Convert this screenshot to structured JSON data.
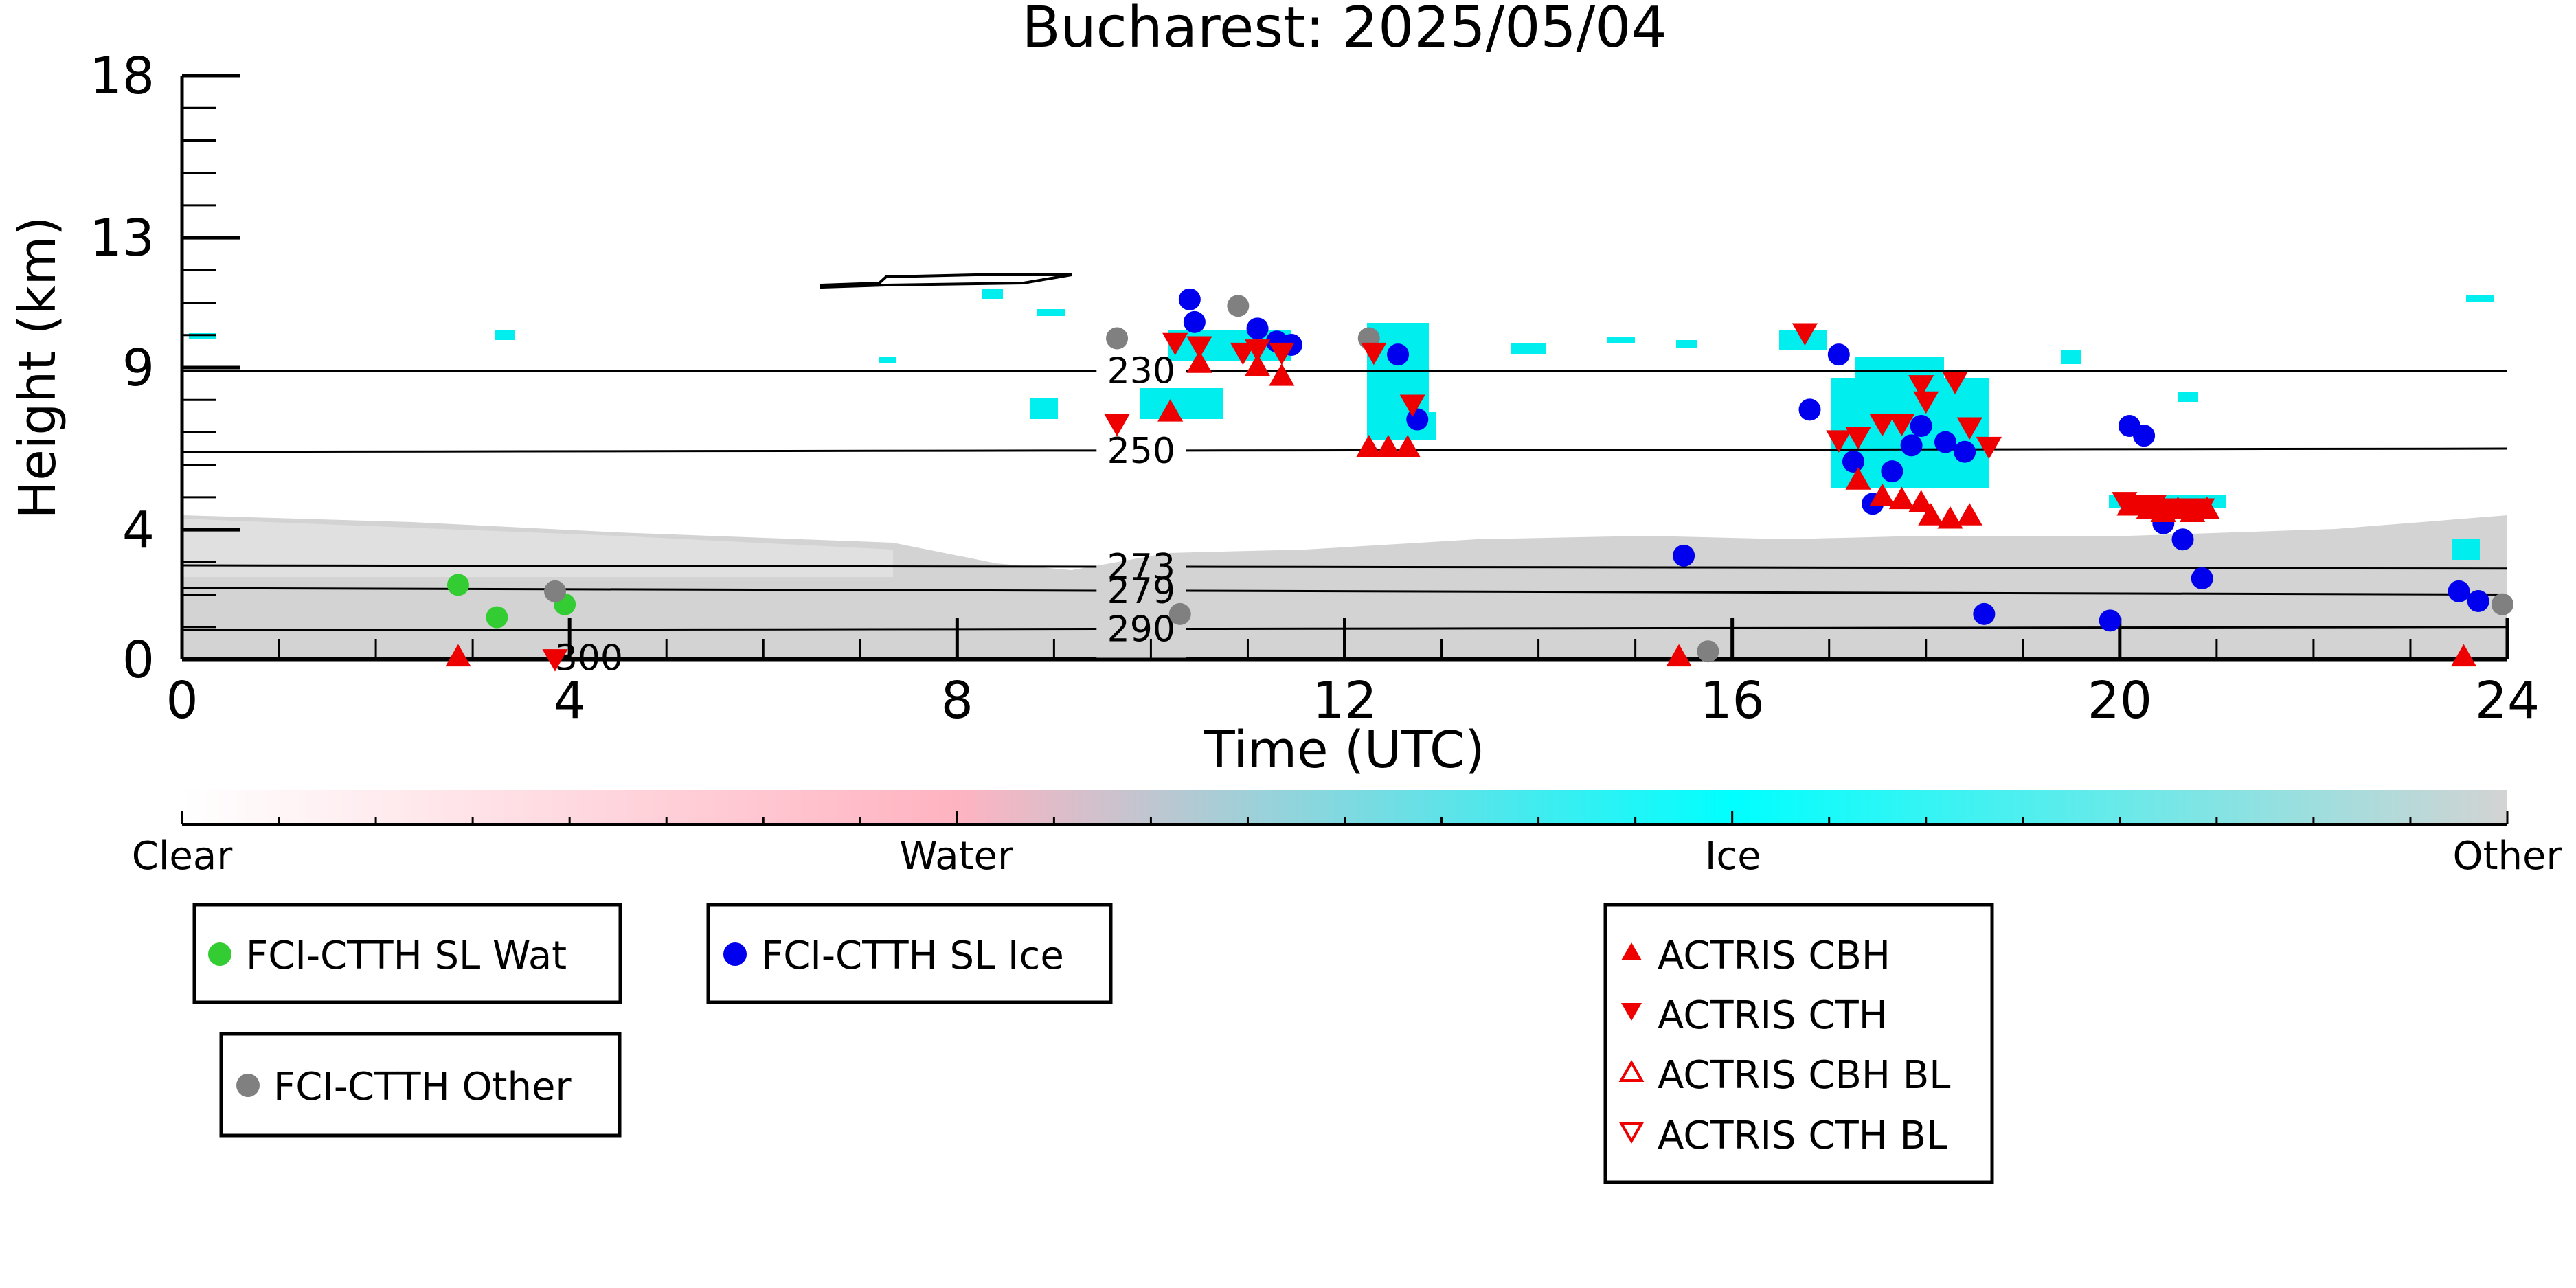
{
  "chart_data": {
    "type": "scatter",
    "title": "Bucharest: 2025/05/04",
    "xlabel": "Time (UTC)",
    "ylabel": "Height (km)",
    "xlim": [
      0,
      24
    ],
    "ylim": [
      0,
      18
    ],
    "xticks": [
      0,
      4,
      8,
      12,
      16,
      20,
      24
    ],
    "yticks": [
      0,
      4,
      9,
      13,
      18
    ],
    "grid": false,
    "colorbar": {
      "labels": [
        {
          "text": "Clear",
          "pos": 0
        },
        {
          "text": "Water",
          "pos": 0.333
        },
        {
          "text": "Ice",
          "pos": 0.667
        },
        {
          "text": "Other",
          "pos": 1
        }
      ],
      "stops": [
        "#ffffff",
        "#ffb3c1",
        "#00ffff",
        "#d3d3d3"
      ]
    },
    "colors": {
      "water": "#33cc33",
      "ice": "#0000ee",
      "other": "#808080",
      "actris": "#ee0000",
      "cloud_ice": "#00eeee",
      "background_other": "#d3d3d3"
    },
    "contours": [
      {
        "label": "230",
        "y0": 8.9,
        "y1": 8.9
      },
      {
        "label": "250",
        "y0": 6.4,
        "y1": 6.5
      },
      {
        "label": "273",
        "y0": 2.9,
        "y1": 2.8
      },
      {
        "label": "279",
        "y0": 2.2,
        "y1": 2.0
      },
      {
        "label": "290",
        "y0": 0.9,
        "y1": 1.0
      },
      {
        "label": "300",
        "y0": 0.05,
        "y1": 0.05
      }
    ],
    "series": [
      {
        "name": "FCI-CTTH SL Wat",
        "marker": "circle",
        "points": [
          [
            2.85,
            2.3
          ],
          [
            3.25,
            1.3
          ],
          [
            3.95,
            1.7
          ]
        ]
      },
      {
        "name": "FCI-CTTH SL Ice",
        "marker": "circle",
        "points": [
          [
            10.4,
            11.1
          ],
          [
            10.45,
            10.4
          ],
          [
            11.1,
            10.2
          ],
          [
            11.3,
            9.8
          ],
          [
            11.45,
            9.7
          ],
          [
            12.55,
            9.4
          ],
          [
            12.75,
            7.4
          ],
          [
            15.5,
            3.2
          ],
          [
            16.8,
            7.7
          ],
          [
            17.1,
            9.4
          ],
          [
            17.25,
            6.1
          ],
          [
            17.45,
            4.8
          ],
          [
            17.65,
            5.8
          ],
          [
            17.85,
            6.6
          ],
          [
            17.95,
            7.2
          ],
          [
            18.2,
            6.7
          ],
          [
            18.4,
            6.4
          ],
          [
            18.6,
            1.4
          ],
          [
            19.9,
            1.2
          ],
          [
            20.1,
            7.2
          ],
          [
            20.25,
            6.9
          ],
          [
            20.45,
            4.2
          ],
          [
            20.65,
            3.7
          ],
          [
            20.85,
            2.5
          ],
          [
            23.5,
            2.1
          ],
          [
            23.7,
            1.8
          ]
        ]
      },
      {
        "name": "FCI-CTTH Other",
        "marker": "circle",
        "points": [
          [
            3.85,
            2.1
          ],
          [
            9.65,
            9.9
          ],
          [
            10.3,
            1.4
          ],
          [
            10.9,
            10.9
          ],
          [
            12.25,
            9.9
          ],
          [
            15.75,
            0.25
          ],
          [
            23.95,
            1.7
          ]
        ]
      },
      {
        "name": "ACTRIS CBH",
        "marker": "triangle-up",
        "points": [
          [
            10.2,
            7.6
          ],
          [
            10.5,
            9.1
          ],
          [
            11.1,
            9.0
          ],
          [
            11.35,
            8.7
          ],
          [
            12.25,
            6.5
          ],
          [
            12.45,
            6.5
          ],
          [
            12.65,
            6.5
          ],
          [
            17.3,
            5.5
          ],
          [
            17.55,
            5.0
          ],
          [
            17.75,
            4.9
          ],
          [
            17.95,
            4.8
          ],
          [
            18.05,
            4.4
          ],
          [
            18.25,
            4.3
          ],
          [
            18.45,
            4.4
          ],
          [
            20.1,
            4.7
          ],
          [
            20.3,
            4.6
          ],
          [
            20.45,
            4.5
          ],
          [
            20.6,
            4.6
          ],
          [
            20.75,
            4.5
          ],
          [
            20.9,
            4.6
          ],
          [
            2.85,
            0.05
          ],
          [
            15.45,
            0.05
          ],
          [
            23.55,
            0.05
          ]
        ]
      },
      {
        "name": "ACTRIS CTH",
        "marker": "triangle-down",
        "points": [
          [
            9.65,
            7.3
          ],
          [
            10.25,
            9.8
          ],
          [
            10.5,
            9.7
          ],
          [
            10.95,
            9.5
          ],
          [
            11.1,
            9.6
          ],
          [
            11.35,
            9.5
          ],
          [
            12.3,
            9.5
          ],
          [
            12.7,
            7.9
          ],
          [
            16.75,
            10.1
          ],
          [
            17.1,
            6.8
          ],
          [
            17.3,
            6.9
          ],
          [
            17.55,
            7.3
          ],
          [
            17.75,
            7.3
          ],
          [
            17.95,
            8.5
          ],
          [
            18.0,
            8.0
          ],
          [
            18.3,
            8.6
          ],
          [
            18.45,
            7.2
          ],
          [
            18.65,
            6.6
          ],
          [
            20.05,
            4.9
          ],
          [
            20.2,
            4.8
          ],
          [
            20.35,
            4.8
          ],
          [
            20.5,
            4.7
          ],
          [
            20.7,
            4.7
          ],
          [
            20.85,
            4.7
          ],
          [
            3.85,
            0.05
          ]
        ]
      },
      {
        "name": "ACTRIS CBH BL",
        "marker": "triangle-up-open",
        "points": []
      },
      {
        "name": "ACTRIS CTH BL",
        "marker": "triangle-down-open",
        "points": []
      }
    ]
  }
}
